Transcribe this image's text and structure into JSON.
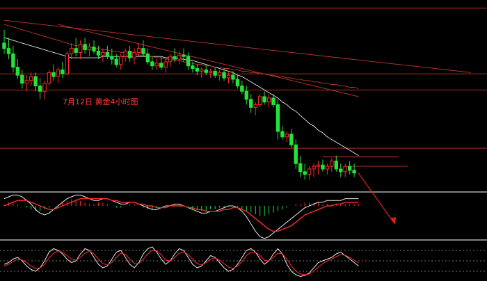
{
  "chart_data": [
    {
      "type": "candlestick",
      "title": "7月12日 黄金4小时图",
      "up_color": "#ff2a2a",
      "down_color": "#22e33a",
      "ma_colors": [
        "#e8e8e8",
        "#c0392b",
        "#b02525"
      ],
      "hline_color": "#c0392b",
      "price_range": [
        0,
        100
      ],
      "grid": false,
      "candles": [
        {
          "o": 82,
          "h": 92,
          "l": 74,
          "c": 78
        },
        {
          "o": 78,
          "h": 86,
          "l": 70,
          "c": 74
        },
        {
          "o": 74,
          "h": 80,
          "l": 60,
          "c": 64
        },
        {
          "o": 64,
          "h": 70,
          "l": 55,
          "c": 58
        },
        {
          "o": 58,
          "h": 62,
          "l": 48,
          "c": 52
        },
        {
          "o": 52,
          "h": 58,
          "l": 46,
          "c": 54
        },
        {
          "o": 54,
          "h": 60,
          "l": 50,
          "c": 57
        },
        {
          "o": 57,
          "h": 60,
          "l": 46,
          "c": 50
        },
        {
          "o": 50,
          "h": 56,
          "l": 40,
          "c": 46
        },
        {
          "o": 46,
          "h": 54,
          "l": 40,
          "c": 52
        },
        {
          "o": 52,
          "h": 62,
          "l": 50,
          "c": 60
        },
        {
          "o": 60,
          "h": 66,
          "l": 54,
          "c": 57
        },
        {
          "o": 57,
          "h": 64,
          "l": 52,
          "c": 62
        },
        {
          "o": 62,
          "h": 68,
          "l": 56,
          "c": 59
        },
        {
          "o": 59,
          "h": 76,
          "l": 58,
          "c": 74
        },
        {
          "o": 74,
          "h": 82,
          "l": 70,
          "c": 78
        },
        {
          "o": 78,
          "h": 86,
          "l": 72,
          "c": 75
        },
        {
          "o": 75,
          "h": 84,
          "l": 70,
          "c": 81
        },
        {
          "o": 81,
          "h": 86,
          "l": 74,
          "c": 77
        },
        {
          "o": 77,
          "h": 82,
          "l": 72,
          "c": 79
        },
        {
          "o": 79,
          "h": 84,
          "l": 74,
          "c": 76
        },
        {
          "o": 76,
          "h": 80,
          "l": 70,
          "c": 73
        },
        {
          "o": 73,
          "h": 78,
          "l": 68,
          "c": 75
        },
        {
          "o": 75,
          "h": 80,
          "l": 70,
          "c": 72
        },
        {
          "o": 72,
          "h": 78,
          "l": 66,
          "c": 70
        },
        {
          "o": 70,
          "h": 74,
          "l": 64,
          "c": 66
        },
        {
          "o": 66,
          "h": 74,
          "l": 62,
          "c": 72
        },
        {
          "o": 72,
          "h": 78,
          "l": 68,
          "c": 76
        },
        {
          "o": 76,
          "h": 80,
          "l": 68,
          "c": 71
        },
        {
          "o": 71,
          "h": 78,
          "l": 66,
          "c": 75
        },
        {
          "o": 75,
          "h": 82,
          "l": 72,
          "c": 78
        },
        {
          "o": 78,
          "h": 84,
          "l": 72,
          "c": 74
        },
        {
          "o": 74,
          "h": 78,
          "l": 66,
          "c": 68
        },
        {
          "o": 68,
          "h": 72,
          "l": 62,
          "c": 65
        },
        {
          "o": 65,
          "h": 70,
          "l": 62,
          "c": 67
        },
        {
          "o": 67,
          "h": 72,
          "l": 62,
          "c": 64
        },
        {
          "o": 64,
          "h": 70,
          "l": 60,
          "c": 68
        },
        {
          "o": 68,
          "h": 74,
          "l": 64,
          "c": 72
        },
        {
          "o": 72,
          "h": 78,
          "l": 68,
          "c": 70
        },
        {
          "o": 70,
          "h": 76,
          "l": 66,
          "c": 73
        },
        {
          "o": 73,
          "h": 78,
          "l": 68,
          "c": 72
        },
        {
          "o": 72,
          "h": 75,
          "l": 62,
          "c": 65
        },
        {
          "o": 65,
          "h": 68,
          "l": 60,
          "c": 63
        },
        {
          "o": 63,
          "h": 66,
          "l": 58,
          "c": 61
        },
        {
          "o": 61,
          "h": 64,
          "l": 56,
          "c": 62
        },
        {
          "o": 62,
          "h": 65,
          "l": 58,
          "c": 60
        },
        {
          "o": 60,
          "h": 63,
          "l": 56,
          "c": 61
        },
        {
          "o": 61,
          "h": 64,
          "l": 56,
          "c": 58
        },
        {
          "o": 58,
          "h": 62,
          "l": 54,
          "c": 60
        },
        {
          "o": 60,
          "h": 63,
          "l": 54,
          "c": 56
        },
        {
          "o": 56,
          "h": 60,
          "l": 52,
          "c": 58
        },
        {
          "o": 58,
          "h": 61,
          "l": 52,
          "c": 55
        },
        {
          "o": 55,
          "h": 58,
          "l": 48,
          "c": 50
        },
        {
          "o": 50,
          "h": 54,
          "l": 44,
          "c": 46
        },
        {
          "o": 46,
          "h": 50,
          "l": 36,
          "c": 40
        },
        {
          "o": 40,
          "h": 44,
          "l": 30,
          "c": 34
        },
        {
          "o": 34,
          "h": 38,
          "l": 28,
          "c": 36
        },
        {
          "o": 36,
          "h": 44,
          "l": 34,
          "c": 42
        },
        {
          "o": 42,
          "h": 46,
          "l": 36,
          "c": 38
        },
        {
          "o": 38,
          "h": 44,
          "l": 34,
          "c": 41
        },
        {
          "o": 41,
          "h": 44,
          "l": 34,
          "c": 36
        },
        {
          "o": 36,
          "h": 40,
          "l": 10,
          "c": 16
        },
        {
          "o": 16,
          "h": 20,
          "l": 10,
          "c": 12
        },
        {
          "o": 12,
          "h": 16,
          "l": 8,
          "c": 14
        },
        {
          "o": 14,
          "h": 18,
          "l": 4,
          "c": 6
        },
        {
          "o": 6,
          "h": 10,
          "l": -12,
          "c": -8
        },
        {
          "o": -8,
          "h": -2,
          "l": -18,
          "c": -14
        },
        {
          "o": -14,
          "h": -8,
          "l": -20,
          "c": -16
        },
        {
          "o": -16,
          "h": -10,
          "l": -20,
          "c": -12
        },
        {
          "o": -12,
          "h": -8,
          "l": -18,
          "c": -10
        },
        {
          "o": -10,
          "h": -6,
          "l": -16,
          "c": -9
        },
        {
          "o": -9,
          "h": -5,
          "l": -14,
          "c": -12
        },
        {
          "o": -12,
          "h": -8,
          "l": -16,
          "c": -10
        },
        {
          "o": -10,
          "h": -4,
          "l": -14,
          "c": -6
        },
        {
          "o": -6,
          "h": -2,
          "l": -14,
          "c": -12
        },
        {
          "o": -12,
          "h": -8,
          "l": -18,
          "c": -14
        },
        {
          "o": -14,
          "h": -8,
          "l": -18,
          "c": -10
        },
        {
          "o": -10,
          "h": -6,
          "l": -16,
          "c": -13
        },
        {
          "o": -13,
          "h": -8,
          "l": -18,
          "c": -15
        }
      ],
      "moving_averages": [
        {
          "values": [
            86,
            85,
            84,
            83,
            82,
            81,
            80,
            79,
            78,
            77,
            76,
            75,
            74,
            73,
            72,
            71,
            71,
            71,
            71,
            71,
            71,
            71,
            72,
            72,
            72,
            72,
            72,
            72,
            72,
            72,
            72,
            72,
            72,
            72,
            72,
            72,
            71,
            71,
            71,
            70,
            70,
            69,
            69,
            68,
            67,
            66,
            65,
            64,
            63,
            62,
            61,
            60,
            58,
            57,
            55,
            53,
            51,
            49,
            47,
            45,
            43,
            41,
            38,
            36,
            33,
            31,
            28,
            25,
            22,
            20,
            17,
            15,
            12,
            10,
            8,
            6,
            4,
            2,
            0,
            -2
          ]
        },
        {
          "values": [
            96,
            95,
            94,
            93,
            92,
            91,
            90,
            89,
            88,
            87,
            86,
            85,
            84,
            83,
            82,
            81,
            80,
            80,
            79,
            79,
            78,
            78,
            77,
            77,
            76,
            76,
            75,
            75,
            74,
            74,
            73,
            73,
            72,
            72,
            71,
            71,
            70,
            70,
            69,
            69,
            68,
            67,
            67,
            66,
            66,
            65,
            65,
            64,
            64,
            63,
            63,
            62,
            62,
            61,
            61,
            60,
            60,
            59,
            59,
            58,
            58,
            57,
            57,
            56,
            56,
            55,
            55,
            54,
            54,
            53,
            53,
            52,
            52,
            51,
            51,
            50,
            50,
            49,
            49,
            48
          ]
        }
      ],
      "trendlines": [
        {
          "points": [
            [
              12,
              96
            ],
            [
              79,
              42
            ]
          ]
        },
        {
          "points": [
            [
              0,
              99
            ],
            [
              104,
              60
            ]
          ]
        }
      ],
      "horizontal_lines": [
        108,
        59,
        47,
        3.5
      ],
      "indicator_macd": {
        "histogram": [
          1,
          2,
          2,
          1,
          0,
          -1,
          -2,
          -3,
          -3,
          -2,
          -1,
          0,
          1,
          2,
          3,
          4,
          4,
          3,
          2,
          1,
          1,
          2,
          2,
          1,
          0,
          -1,
          -1,
          0,
          1,
          1,
          0,
          -1,
          -2,
          -2,
          -1,
          0,
          0,
          1,
          1,
          1,
          0,
          -1,
          -2,
          -2,
          -3,
          -3,
          -2,
          -2,
          -1,
          -1,
          0,
          0,
          -1,
          -2,
          -3,
          -4,
          -5,
          -6,
          -6,
          -5,
          -4,
          -3,
          -2,
          -1,
          0,
          1,
          1,
          2,
          2,
          2,
          2,
          1,
          1,
          1,
          1,
          1,
          1,
          1,
          1,
          1
        ],
        "dif": [
          4,
          5,
          6,
          6,
          5,
          3,
          1,
          -2,
          -4,
          -5,
          -4,
          -2,
          0,
          2,
          4,
          5,
          6,
          6,
          5,
          4,
          3,
          3,
          4,
          4,
          3,
          2,
          1,
          1,
          2,
          2,
          1,
          0,
          -1,
          -2,
          -2,
          -1,
          0,
          0,
          1,
          1,
          0,
          -1,
          -2,
          -3,
          -4,
          -4,
          -3,
          -3,
          -2,
          -1,
          0,
          0,
          -1,
          -3,
          -6,
          -10,
          -14,
          -17,
          -18,
          -17,
          -15,
          -13,
          -11,
          -9,
          -7,
          -5,
          -3,
          -1,
          0,
          1,
          2,
          2,
          3,
          3,
          3,
          3,
          4,
          4,
          4,
          4
        ],
        "dea": [
          0,
          1,
          2,
          3,
          3,
          3,
          2,
          1,
          0,
          -1,
          -2,
          -2,
          -1,
          0,
          1,
          2,
          3,
          4,
          4,
          4,
          4,
          4,
          4,
          4,
          3,
          3,
          2,
          2,
          2,
          2,
          1,
          1,
          0,
          0,
          -1,
          -1,
          -1,
          0,
          0,
          0,
          0,
          -1,
          -1,
          -2,
          -2,
          -3,
          -3,
          -3,
          -3,
          -2,
          -2,
          -1,
          -1,
          -2,
          -3,
          -5,
          -7,
          -9,
          -11,
          -13,
          -14,
          -14,
          -13,
          -12,
          -11,
          -9,
          -7,
          -5,
          -4,
          -3,
          -2,
          -1,
          0,
          0,
          1,
          1,
          2,
          2,
          2,
          2
        ]
      },
      "indicator_kdj": {
        "dotted_levels": [
          80,
          50,
          20
        ],
        "k": [
          40,
          45,
          55,
          60,
          50,
          35,
          25,
          20,
          30,
          50,
          75,
          85,
          80,
          70,
          55,
          45,
          50,
          70,
          85,
          80,
          60,
          40,
          30,
          35,
          55,
          75,
          80,
          60,
          40,
          30,
          45,
          70,
          85,
          90,
          75,
          55,
          40,
          50,
          70,
          85,
          80,
          60,
          40,
          30,
          35,
          50,
          65,
          60,
          45,
          30,
          20,
          25,
          40,
          60,
          80,
          85,
          75,
          55,
          40,
          50,
          70,
          85,
          70,
          40,
          20,
          10,
          5,
          8,
          15,
          30,
          45,
          50,
          55,
          60,
          70,
          75,
          65,
          55,
          45,
          35
        ],
        "d": [
          35,
          40,
          48,
          55,
          52,
          45,
          35,
          28,
          30,
          40,
          58,
          72,
          78,
          75,
          65,
          55,
          52,
          60,
          72,
          78,
          70,
          55,
          42,
          38,
          45,
          60,
          72,
          68,
          55,
          42,
          42,
          55,
          70,
          80,
          78,
          68,
          52,
          50,
          60,
          72,
          76,
          68,
          55,
          42,
          38,
          45,
          55,
          58,
          52,
          42,
          32,
          28,
          35,
          48,
          65,
          75,
          75,
          65,
          52,
          50,
          60,
          72,
          70,
          55,
          35,
          20,
          12,
          10,
          12,
          20,
          32,
          42,
          50,
          55,
          62,
          68,
          66,
          60,
          52,
          44
        ]
      }
    }
  ]
}
